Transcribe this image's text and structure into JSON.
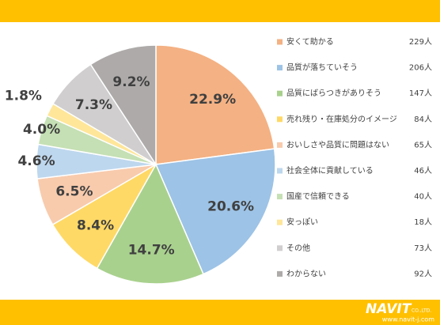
{
  "chart_data": {
    "type": "pie",
    "categories": [
      "安くて助かる",
      "品質が落ちていそう",
      "品質にばらつきがありそう",
      "売れ残り・在庫処分のイメージ",
      "おいしさや品質に問題はない",
      "社会全体に貢献している",
      "国産で信頼できる",
      "安っぽい",
      "その他",
      "わからない"
    ],
    "values": [
      22.9,
      20.6,
      14.7,
      8.4,
      6.5,
      4.6,
      4.0,
      1.8,
      7.3,
      9.2
    ],
    "value_labels": [
      "22.9%",
      "20.6%",
      "14.7%",
      "8.4%",
      "6.5%",
      "4.6%",
      "4.0%",
      "1.8%",
      "7.3%",
      "9.2%"
    ],
    "counts": [
      "229人",
      "206人",
      "147人",
      "84人",
      "65人",
      "46人",
      "40人",
      "18人",
      "73人",
      "92人"
    ],
    "colors": [
      "#f4b183",
      "#9dc3e6",
      "#a9d18e",
      "#ffd966",
      "#f8cbad",
      "#bdd7ee",
      "#c5e0b4",
      "#ffe699",
      "#d0cece",
      "#aeaaaa"
    ]
  },
  "footer": {
    "logo": "NAVIT",
    "company": "CO.,LTD.",
    "url": "www.navit-j.com"
  }
}
